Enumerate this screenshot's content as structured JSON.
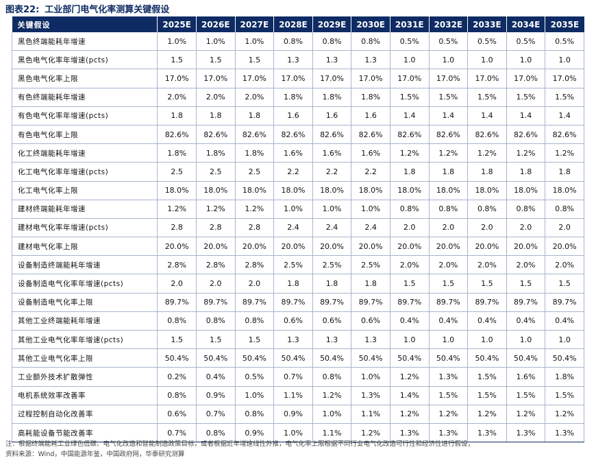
{
  "title": {
    "number": "图表22:",
    "text": "工业部门电气化率测算关键假设"
  },
  "table": {
    "header_label": "关键假设",
    "years": [
      "2025E",
      "2026E",
      "2027E",
      "2028E",
      "2029E",
      "2030E",
      "2031E",
      "2032E",
      "2033E",
      "2034E",
      "2035E"
    ],
    "rows": [
      {
        "label": "黑色终端能耗年增速",
        "values": [
          "1.0%",
          "1.0%",
          "1.0%",
          "0.8%",
          "0.8%",
          "0.8%",
          "0.5%",
          "0.5%",
          "0.5%",
          "0.5%",
          "0.5%"
        ]
      },
      {
        "label": "黑色电气化率年增速(pcts)",
        "values": [
          "1.5",
          "1.5",
          "1.5",
          "1.3",
          "1.3",
          "1.3",
          "1.0",
          "1.0",
          "1.0",
          "1.0",
          "1.0"
        ]
      },
      {
        "label": "黑色电气化率上限",
        "values": [
          "17.0%",
          "17.0%",
          "17.0%",
          "17.0%",
          "17.0%",
          "17.0%",
          "17.0%",
          "17.0%",
          "17.0%",
          "17.0%",
          "17.0%"
        ]
      },
      {
        "label": "有色终端能耗年增速",
        "values": [
          "2.0%",
          "2.0%",
          "2.0%",
          "1.8%",
          "1.8%",
          "1.8%",
          "1.5%",
          "1.5%",
          "1.5%",
          "1.5%",
          "1.5%"
        ]
      },
      {
        "label": "有色电气化率年增速(pcts)",
        "values": [
          "1.8",
          "1.8",
          "1.8",
          "1.6",
          "1.6",
          "1.6",
          "1.4",
          "1.4",
          "1.4",
          "1.4",
          "1.4"
        ]
      },
      {
        "label": "有色电气化率上限",
        "values": [
          "82.6%",
          "82.6%",
          "82.6%",
          "82.6%",
          "82.6%",
          "82.6%",
          "82.6%",
          "82.6%",
          "82.6%",
          "82.6%",
          "82.6%"
        ]
      },
      {
        "label": "化工终端能耗年增速",
        "values": [
          "1.8%",
          "1.8%",
          "1.8%",
          "1.6%",
          "1.6%",
          "1.6%",
          "1.2%",
          "1.2%",
          "1.2%",
          "1.2%",
          "1.2%"
        ]
      },
      {
        "label": "化工电气化率年增速(pcts)",
        "values": [
          "2.5",
          "2.5",
          "2.5",
          "2.2",
          "2.2",
          "2.2",
          "1.8",
          "1.8",
          "1.8",
          "1.8",
          "1.8"
        ]
      },
      {
        "label": "化工电气化率上限",
        "values": [
          "18.0%",
          "18.0%",
          "18.0%",
          "18.0%",
          "18.0%",
          "18.0%",
          "18.0%",
          "18.0%",
          "18.0%",
          "18.0%",
          "18.0%"
        ]
      },
      {
        "label": "建材终端能耗年增速",
        "values": [
          "1.2%",
          "1.2%",
          "1.2%",
          "1.0%",
          "1.0%",
          "1.0%",
          "0.8%",
          "0.8%",
          "0.8%",
          "0.8%",
          "0.8%"
        ]
      },
      {
        "label": "建材电气化率年增速(pcts)",
        "values": [
          "2.8",
          "2.8",
          "2.8",
          "2.4",
          "2.4",
          "2.4",
          "2.0",
          "2.0",
          "2.0",
          "2.0",
          "2.0"
        ]
      },
      {
        "label": "建材电气化率上限",
        "values": [
          "20.0%",
          "20.0%",
          "20.0%",
          "20.0%",
          "20.0%",
          "20.0%",
          "20.0%",
          "20.0%",
          "20.0%",
          "20.0%",
          "20.0%"
        ]
      },
      {
        "label": "设备制造终端能耗年增速",
        "values": [
          "2.8%",
          "2.8%",
          "2.8%",
          "2.5%",
          "2.5%",
          "2.5%",
          "2.0%",
          "2.0%",
          "2.0%",
          "2.0%",
          "2.0%"
        ]
      },
      {
        "label": "设备制造电气化率年增速(pcts)",
        "values": [
          "2.0",
          "2.0",
          "2.0",
          "1.8",
          "1.8",
          "1.8",
          "1.5",
          "1.5",
          "1.5",
          "1.5",
          "1.5"
        ]
      },
      {
        "label": "设备制造电气化率上限",
        "values": [
          "89.7%",
          "89.7%",
          "89.7%",
          "89.7%",
          "89.7%",
          "89.7%",
          "89.7%",
          "89.7%",
          "89.7%",
          "89.7%",
          "89.7%"
        ]
      },
      {
        "label": "其他工业终端能耗年增速",
        "values": [
          "0.8%",
          "0.8%",
          "0.8%",
          "0.6%",
          "0.6%",
          "0.6%",
          "0.4%",
          "0.4%",
          "0.4%",
          "0.4%",
          "0.4%"
        ]
      },
      {
        "label": "其他工业电气化率年增速(pcts)",
        "values": [
          "1.5",
          "1.5",
          "1.5",
          "1.3",
          "1.3",
          "1.3",
          "1.0",
          "1.0",
          "1.0",
          "1.0",
          "1.0"
        ]
      },
      {
        "label": "其他工业电气化率上限",
        "values": [
          "50.4%",
          "50.4%",
          "50.4%",
          "50.4%",
          "50.4%",
          "50.4%",
          "50.4%",
          "50.4%",
          "50.4%",
          "50.4%",
          "50.4%"
        ]
      },
      {
        "label": "工业额外技术扩散弹性",
        "values": [
          "0.2%",
          "0.4%",
          "0.5%",
          "0.7%",
          "0.8%",
          "1.0%",
          "1.2%",
          "1.3%",
          "1.5%",
          "1.6%",
          "1.8%"
        ]
      },
      {
        "label": "电机系统效率改善率",
        "values": [
          "0.8%",
          "0.9%",
          "1.0%",
          "1.1%",
          "1.2%",
          "1.3%",
          "1.4%",
          "1.5%",
          "1.5%",
          "1.5%",
          "1.5%"
        ]
      },
      {
        "label": "过程控制自动化改善率",
        "values": [
          "0.6%",
          "0.7%",
          "0.8%",
          "0.9%",
          "1.0%",
          "1.1%",
          "1.2%",
          "1.2%",
          "1.2%",
          "1.2%",
          "1.2%"
        ]
      },
      {
        "label": "高耗能设备节能改善率",
        "values": [
          "0.7%",
          "0.8%",
          "0.9%",
          "1.0%",
          "1.1%",
          "1.2%",
          "1.3%",
          "1.3%",
          "1.3%",
          "1.3%",
          "1.3%"
        ]
      }
    ]
  },
  "note": "注：根据终端能耗工业绿色低碳、电气化改造和智能制造政策目标，或者根据近年增速线性外推，电气化率上限根据不同行业电气化改造可行性和经济性进行假设；",
  "source": "资料来源：Wind，中国能源年鉴，中国政府网，华泰研究测算",
  "colors": {
    "header_bg": "#0e2b63",
    "grid": "#a7b4cf"
  }
}
